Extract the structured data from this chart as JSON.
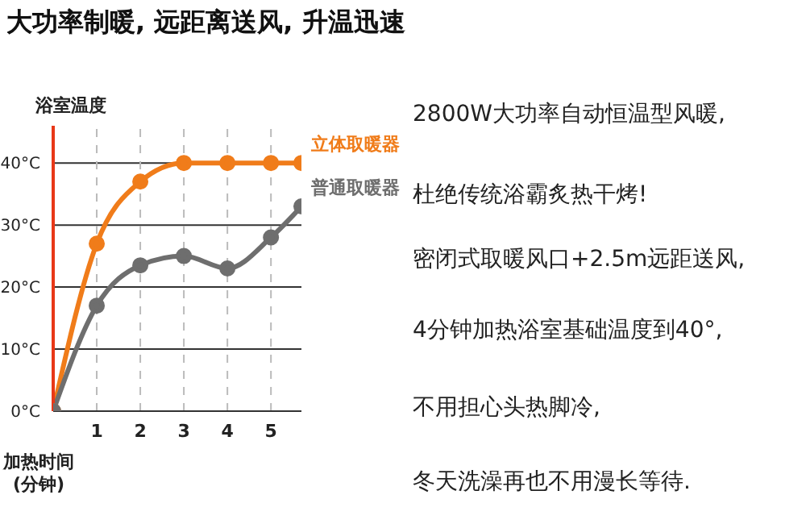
{
  "chart_data": {
    "type": "line",
    "title": "大功率制暖, 远距离送风, 升温迅速",
    "ylabel": "浴室温度",
    "xlabel": "加热时间\n(分钟)",
    "x": [
      0,
      1,
      2,
      3,
      4,
      5,
      5.7
    ],
    "series": [
      {
        "name": "立体取暖器",
        "color": "#f07c1a",
        "values": [
          0,
          27,
          37,
          40,
          40,
          40,
          40
        ]
      },
      {
        "name": "普通取暖器",
        "color": "#6e6e6e",
        "values": [
          0,
          17,
          23.5,
          25,
          23,
          28,
          33
        ]
      }
    ],
    "xlim": [
      0,
      5.7
    ],
    "xticks": [
      1,
      2,
      3,
      4,
      5
    ],
    "ylim": [
      0,
      46
    ],
    "yticks": [
      {
        "value": 0,
        "label": "0°C"
      },
      {
        "value": 10,
        "label": "10°C"
      },
      {
        "value": 20,
        "label": "20°C"
      },
      {
        "value": 30,
        "label": "30°C"
      },
      {
        "value": 40,
        "label": "40°C"
      }
    ],
    "grid": true,
    "marker": "circle",
    "line_style": "solid",
    "annotations": [
      "2800W大功率自动恒温型风暖,",
      "杜绝传统浴霸炙热干烤!",
      "密闭式取暖风口+2.5m远距送风,",
      "4分钟加热浴室基础温度到40°,",
      "不用担心头热脚冷,",
      "冬天洗澡再也不用漫长等待."
    ]
  }
}
